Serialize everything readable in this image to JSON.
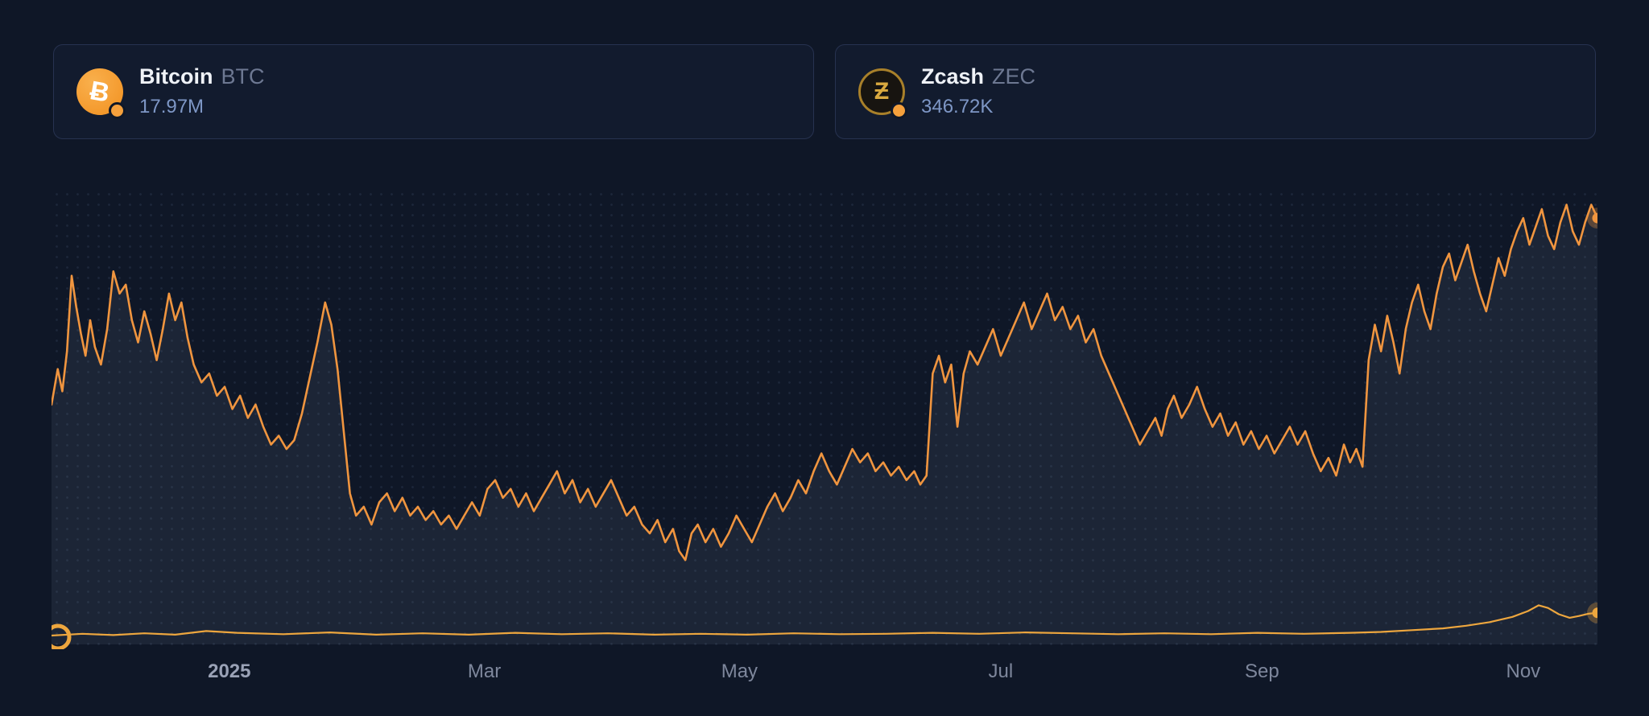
{
  "colors": {
    "background": "#0f1727",
    "card_background": "#121b2e",
    "card_border": "#273250",
    "line_orange": "#f0953f",
    "zec_line": "#eda63e",
    "area_fill": "rgba(148,162,190,0.10)",
    "value_text": "#7e97c6",
    "name_text": "#eff2f7",
    "symbol_text": "#6d7892",
    "axis_text": "#7e879c",
    "bitcoin_icon_bg": "#f7931a",
    "zcash_icon_gold": "#d9a93f"
  },
  "icons": {
    "bitcoin_glyph": "Ƀ",
    "zcash_glyph": "Ƶ",
    "series_badge": "orange-dot"
  },
  "cards": [
    {
      "name": "Bitcoin",
      "symbol": "BTC",
      "value": "17.97M"
    },
    {
      "name": "Zcash",
      "symbol": "ZEC",
      "value": "346.72K"
    }
  ],
  "chart_data": {
    "type": "line",
    "title": "",
    "xlabel": "",
    "ylabel": "",
    "y_unit": "relative height 0-100 (no y-axis labels shown in chart)",
    "ylim": [
      0,
      100
    ],
    "x_range": [
      "Dec 2024",
      "Nov 2025"
    ],
    "grid": "dotted",
    "legend_position": "top-cards",
    "ticks": [
      {
        "label": "2025",
        "x": 0.115,
        "bold": true
      },
      {
        "label": "Mar",
        "x": 0.28,
        "bold": false
      },
      {
        "label": "May",
        "x": 0.445,
        "bold": false
      },
      {
        "label": "Jul",
        "x": 0.614,
        "bold": false
      },
      {
        "label": "Sep",
        "x": 0.783,
        "bold": false
      },
      {
        "label": "Nov",
        "x": 0.952,
        "bold": false
      }
    ],
    "series": [
      {
        "name": "Bitcoin",
        "symbol": "BTC",
        "current_value": "17.97M",
        "color": "#f0953f",
        "width": 2.6,
        "area": true,
        "end_dot": true,
        "start_ring": false,
        "points": [
          [
            0.0,
            54
          ],
          [
            0.004,
            62
          ],
          [
            0.007,
            57
          ],
          [
            0.01,
            66
          ],
          [
            0.013,
            83
          ],
          [
            0.016,
            76
          ],
          [
            0.019,
            70
          ],
          [
            0.022,
            65
          ],
          [
            0.025,
            73
          ],
          [
            0.028,
            67
          ],
          [
            0.032,
            63
          ],
          [
            0.036,
            71
          ],
          [
            0.04,
            84
          ],
          [
            0.044,
            79
          ],
          [
            0.048,
            81
          ],
          [
            0.052,
            73
          ],
          [
            0.056,
            68
          ],
          [
            0.06,
            75
          ],
          [
            0.064,
            70
          ],
          [
            0.068,
            64
          ],
          [
            0.072,
            71
          ],
          [
            0.076,
            79
          ],
          [
            0.08,
            73
          ],
          [
            0.084,
            77
          ],
          [
            0.088,
            69
          ],
          [
            0.092,
            63
          ],
          [
            0.097,
            59
          ],
          [
            0.102,
            61
          ],
          [
            0.107,
            56
          ],
          [
            0.112,
            58
          ],
          [
            0.117,
            53
          ],
          [
            0.122,
            56
          ],
          [
            0.127,
            51
          ],
          [
            0.132,
            54
          ],
          [
            0.137,
            49
          ],
          [
            0.142,
            45
          ],
          [
            0.147,
            47
          ],
          [
            0.152,
            44
          ],
          [
            0.157,
            46
          ],
          [
            0.162,
            52
          ],
          [
            0.167,
            60
          ],
          [
            0.172,
            68
          ],
          [
            0.177,
            77
          ],
          [
            0.181,
            72
          ],
          [
            0.185,
            62
          ],
          [
            0.189,
            48
          ],
          [
            0.193,
            34
          ],
          [
            0.197,
            29
          ],
          [
            0.202,
            31
          ],
          [
            0.207,
            27
          ],
          [
            0.212,
            32
          ],
          [
            0.217,
            34
          ],
          [
            0.222,
            30
          ],
          [
            0.227,
            33
          ],
          [
            0.232,
            29
          ],
          [
            0.237,
            31
          ],
          [
            0.242,
            28
          ],
          [
            0.247,
            30
          ],
          [
            0.252,
            27
          ],
          [
            0.257,
            29
          ],
          [
            0.262,
            26
          ],
          [
            0.267,
            29
          ],
          [
            0.272,
            32
          ],
          [
            0.277,
            29
          ],
          [
            0.282,
            35
          ],
          [
            0.287,
            37
          ],
          [
            0.292,
            33
          ],
          [
            0.297,
            35
          ],
          [
            0.302,
            31
          ],
          [
            0.307,
            34
          ],
          [
            0.312,
            30
          ],
          [
            0.317,
            33
          ],
          [
            0.322,
            36
          ],
          [
            0.327,
            39
          ],
          [
            0.332,
            34
          ],
          [
            0.337,
            37
          ],
          [
            0.342,
            32
          ],
          [
            0.347,
            35
          ],
          [
            0.352,
            31
          ],
          [
            0.357,
            34
          ],
          [
            0.362,
            37
          ],
          [
            0.367,
            33
          ],
          [
            0.372,
            29
          ],
          [
            0.377,
            31
          ],
          [
            0.382,
            27
          ],
          [
            0.387,
            25
          ],
          [
            0.392,
            28
          ],
          [
            0.397,
            23
          ],
          [
            0.402,
            26
          ],
          [
            0.406,
            21
          ],
          [
            0.41,
            19
          ],
          [
            0.414,
            25
          ],
          [
            0.418,
            27
          ],
          [
            0.423,
            23
          ],
          [
            0.428,
            26
          ],
          [
            0.433,
            22
          ],
          [
            0.438,
            25
          ],
          [
            0.443,
            29
          ],
          [
            0.448,
            26
          ],
          [
            0.453,
            23
          ],
          [
            0.458,
            27
          ],
          [
            0.463,
            31
          ],
          [
            0.468,
            34
          ],
          [
            0.473,
            30
          ],
          [
            0.478,
            33
          ],
          [
            0.483,
            37
          ],
          [
            0.488,
            34
          ],
          [
            0.493,
            39
          ],
          [
            0.498,
            43
          ],
          [
            0.503,
            39
          ],
          [
            0.508,
            36
          ],
          [
            0.513,
            40
          ],
          [
            0.518,
            44
          ],
          [
            0.523,
            41
          ],
          [
            0.528,
            43
          ],
          [
            0.533,
            39
          ],
          [
            0.538,
            41
          ],
          [
            0.543,
            38
          ],
          [
            0.548,
            40
          ],
          [
            0.553,
            37
          ],
          [
            0.558,
            39
          ],
          [
            0.562,
            36
          ],
          [
            0.566,
            38
          ],
          [
            0.57,
            61
          ],
          [
            0.574,
            65
          ],
          [
            0.578,
            59
          ],
          [
            0.582,
            63
          ],
          [
            0.586,
            49
          ],
          [
            0.59,
            61
          ],
          [
            0.594,
            66
          ],
          [
            0.599,
            63
          ],
          [
            0.604,
            67
          ],
          [
            0.609,
            71
          ],
          [
            0.614,
            65
          ],
          [
            0.619,
            69
          ],
          [
            0.624,
            73
          ],
          [
            0.629,
            77
          ],
          [
            0.634,
            71
          ],
          [
            0.639,
            75
          ],
          [
            0.644,
            79
          ],
          [
            0.649,
            73
          ],
          [
            0.654,
            76
          ],
          [
            0.659,
            71
          ],
          [
            0.664,
            74
          ],
          [
            0.669,
            68
          ],
          [
            0.674,
            71
          ],
          [
            0.679,
            65
          ],
          [
            0.684,
            61
          ],
          [
            0.689,
            57
          ],
          [
            0.694,
            53
          ],
          [
            0.699,
            49
          ],
          [
            0.704,
            45
          ],
          [
            0.709,
            48
          ],
          [
            0.714,
            51
          ],
          [
            0.718,
            47
          ],
          [
            0.722,
            53
          ],
          [
            0.726,
            56
          ],
          [
            0.731,
            51
          ],
          [
            0.736,
            54
          ],
          [
            0.741,
            58
          ],
          [
            0.746,
            53
          ],
          [
            0.751,
            49
          ],
          [
            0.756,
            52
          ],
          [
            0.761,
            47
          ],
          [
            0.766,
            50
          ],
          [
            0.771,
            45
          ],
          [
            0.776,
            48
          ],
          [
            0.781,
            44
          ],
          [
            0.786,
            47
          ],
          [
            0.791,
            43
          ],
          [
            0.796,
            46
          ],
          [
            0.801,
            49
          ],
          [
            0.806,
            45
          ],
          [
            0.811,
            48
          ],
          [
            0.816,
            43
          ],
          [
            0.821,
            39
          ],
          [
            0.826,
            42
          ],
          [
            0.831,
            38
          ],
          [
            0.836,
            45
          ],
          [
            0.84,
            41
          ],
          [
            0.844,
            44
          ],
          [
            0.848,
            40
          ],
          [
            0.852,
            64
          ],
          [
            0.856,
            72
          ],
          [
            0.86,
            66
          ],
          [
            0.864,
            74
          ],
          [
            0.868,
            68
          ],
          [
            0.872,
            61
          ],
          [
            0.876,
            71
          ],
          [
            0.88,
            77
          ],
          [
            0.884,
            81
          ],
          [
            0.888,
            75
          ],
          [
            0.892,
            71
          ],
          [
            0.896,
            79
          ],
          [
            0.9,
            85
          ],
          [
            0.904,
            88
          ],
          [
            0.908,
            82
          ],
          [
            0.912,
            86
          ],
          [
            0.916,
            90
          ],
          [
            0.92,
            84
          ],
          [
            0.924,
            79
          ],
          [
            0.928,
            75
          ],
          [
            0.932,
            81
          ],
          [
            0.936,
            87
          ],
          [
            0.94,
            83
          ],
          [
            0.944,
            89
          ],
          [
            0.948,
            93
          ],
          [
            0.952,
            96
          ],
          [
            0.956,
            90
          ],
          [
            0.96,
            94
          ],
          [
            0.964,
            98
          ],
          [
            0.968,
            92
          ],
          [
            0.972,
            89
          ],
          [
            0.976,
            95
          ],
          [
            0.98,
            99
          ],
          [
            0.984,
            93
          ],
          [
            0.988,
            90
          ],
          [
            0.992,
            95
          ],
          [
            0.996,
            99
          ],
          [
            1.0,
            96
          ]
        ]
      },
      {
        "name": "Zcash",
        "symbol": "ZEC",
        "current_value": "346.72K",
        "color": "#eda63e",
        "width": 2.2,
        "area": false,
        "end_dot": true,
        "start_ring": true,
        "points": [
          [
            0.0,
            2.0
          ],
          [
            0.02,
            2.4
          ],
          [
            0.04,
            2.1
          ],
          [
            0.06,
            2.5
          ],
          [
            0.08,
            2.2
          ],
          [
            0.1,
            3.0
          ],
          [
            0.12,
            2.6
          ],
          [
            0.15,
            2.3
          ],
          [
            0.18,
            2.7
          ],
          [
            0.21,
            2.2
          ],
          [
            0.24,
            2.5
          ],
          [
            0.27,
            2.2
          ],
          [
            0.3,
            2.6
          ],
          [
            0.33,
            2.3
          ],
          [
            0.36,
            2.5
          ],
          [
            0.39,
            2.2
          ],
          [
            0.42,
            2.4
          ],
          [
            0.45,
            2.2
          ],
          [
            0.48,
            2.5
          ],
          [
            0.51,
            2.3
          ],
          [
            0.54,
            2.4
          ],
          [
            0.57,
            2.6
          ],
          [
            0.6,
            2.4
          ],
          [
            0.63,
            2.7
          ],
          [
            0.66,
            2.5
          ],
          [
            0.69,
            2.3
          ],
          [
            0.72,
            2.5
          ],
          [
            0.75,
            2.3
          ],
          [
            0.78,
            2.6
          ],
          [
            0.81,
            2.4
          ],
          [
            0.84,
            2.6
          ],
          [
            0.86,
            2.8
          ],
          [
            0.88,
            3.2
          ],
          [
            0.9,
            3.6
          ],
          [
            0.915,
            4.2
          ],
          [
            0.93,
            5.0
          ],
          [
            0.945,
            6.2
          ],
          [
            0.955,
            7.5
          ],
          [
            0.962,
            8.8
          ],
          [
            0.968,
            8.2
          ],
          [
            0.975,
            6.8
          ],
          [
            0.982,
            6.0
          ],
          [
            0.988,
            6.4
          ],
          [
            0.994,
            6.9
          ],
          [
            1.0,
            7.1
          ]
        ]
      }
    ]
  }
}
